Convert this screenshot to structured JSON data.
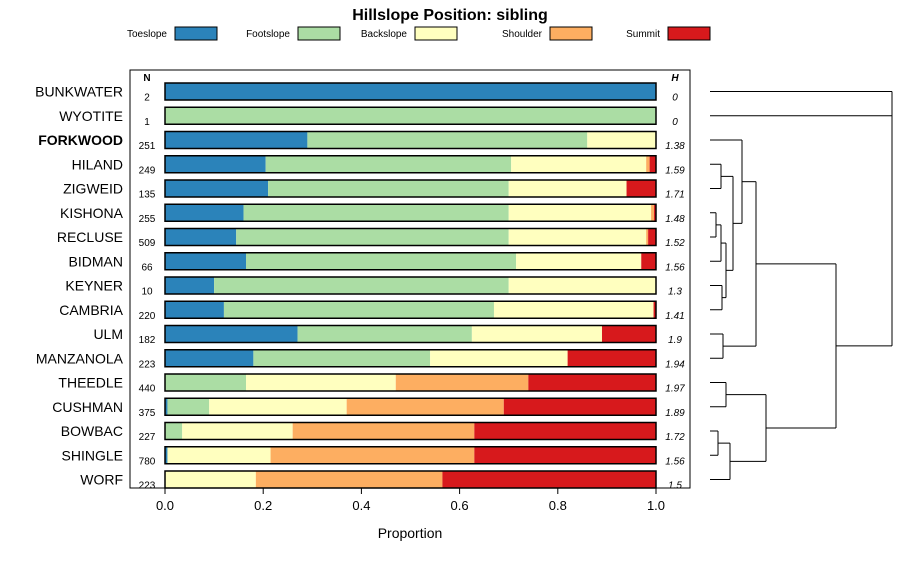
{
  "chart_data": {
    "type": "bar",
    "stacked": true,
    "orientation": "horizontal",
    "title": "Hillslope Position: sibling",
    "xlabel": "Proportion",
    "xlim": [
      0,
      1
    ],
    "xticks": [
      "0.0",
      "0.2",
      "0.4",
      "0.6",
      "0.8",
      "1.0"
    ],
    "n_header": "N",
    "h_header": "H",
    "legend_position": "top",
    "series": [
      {
        "name": "Toeslope",
        "color": "#2b83ba"
      },
      {
        "name": "Footslope",
        "color": "#abdda4"
      },
      {
        "name": "Backslope",
        "color": "#ffffbf"
      },
      {
        "name": "Shoulder",
        "color": "#fdae61"
      },
      {
        "name": "Summit",
        "color": "#d7191c"
      }
    ],
    "rows": [
      {
        "label": "BUNKWATER",
        "bold": false,
        "n": "2",
        "h": "0",
        "values": [
          1.0,
          0,
          0,
          0,
          0
        ]
      },
      {
        "label": "WYOTITE",
        "bold": false,
        "n": "1",
        "h": "0",
        "values": [
          0,
          1.0,
          0,
          0,
          0
        ]
      },
      {
        "label": "FORKWOOD",
        "bold": true,
        "n": "251",
        "h": "1.38",
        "values": [
          0.29,
          0.57,
          0.14,
          0,
          0
        ]
      },
      {
        "label": "HILAND",
        "bold": false,
        "n": "249",
        "h": "1.59",
        "values": [
          0.205,
          0.5,
          0.275,
          0.007,
          0.013
        ]
      },
      {
        "label": "ZIGWEID",
        "bold": false,
        "n": "135",
        "h": "1.71",
        "values": [
          0.21,
          0.49,
          0.24,
          0,
          0.06
        ]
      },
      {
        "label": "KISHONA",
        "bold": false,
        "n": "255",
        "h": "1.48",
        "values": [
          0.16,
          0.54,
          0.29,
          0.006,
          0.004
        ]
      },
      {
        "label": "RECLUSE",
        "bold": false,
        "n": "509",
        "h": "1.52",
        "values": [
          0.145,
          0.555,
          0.28,
          0.004,
          0.016
        ]
      },
      {
        "label": "BIDMAN",
        "bold": false,
        "n": "66",
        "h": "1.56",
        "values": [
          0.165,
          0.55,
          0.255,
          0,
          0.03
        ]
      },
      {
        "label": "KEYNER",
        "bold": false,
        "n": "10",
        "h": "1.3",
        "values": [
          0.1,
          0.6,
          0.3,
          0,
          0
        ]
      },
      {
        "label": "CAMBRIA",
        "bold": false,
        "n": "220",
        "h": "1.41",
        "values": [
          0.12,
          0.55,
          0.325,
          0,
          0.005
        ]
      },
      {
        "label": "ULM",
        "bold": false,
        "n": "182",
        "h": "1.9",
        "values": [
          0.27,
          0.355,
          0.265,
          0,
          0.11
        ]
      },
      {
        "label": "MANZANOLA",
        "bold": false,
        "n": "223",
        "h": "1.94",
        "values": [
          0.18,
          0.36,
          0.28,
          0,
          0.18
        ]
      },
      {
        "label": "THEEDLE",
        "bold": false,
        "n": "440",
        "h": "1.97",
        "values": [
          0,
          0.165,
          0.305,
          0.27,
          0.26
        ]
      },
      {
        "label": "CUSHMAN",
        "bold": false,
        "n": "375",
        "h": "1.89",
        "values": [
          0.005,
          0.085,
          0.28,
          0.32,
          0.31
        ]
      },
      {
        "label": "BOWBAC",
        "bold": false,
        "n": "227",
        "h": "1.72",
        "values": [
          0,
          0.035,
          0.225,
          0.37,
          0.37
        ]
      },
      {
        "label": "SHINGLE",
        "bold": false,
        "n": "780",
        "h": "1.56",
        "values": [
          0.005,
          0,
          0.21,
          0.415,
          0.37
        ]
      },
      {
        "label": "WORF",
        "bold": false,
        "n": "223",
        "h": "1.5",
        "values": [
          0,
          0,
          0.185,
          0.38,
          0.435
        ]
      }
    ]
  }
}
